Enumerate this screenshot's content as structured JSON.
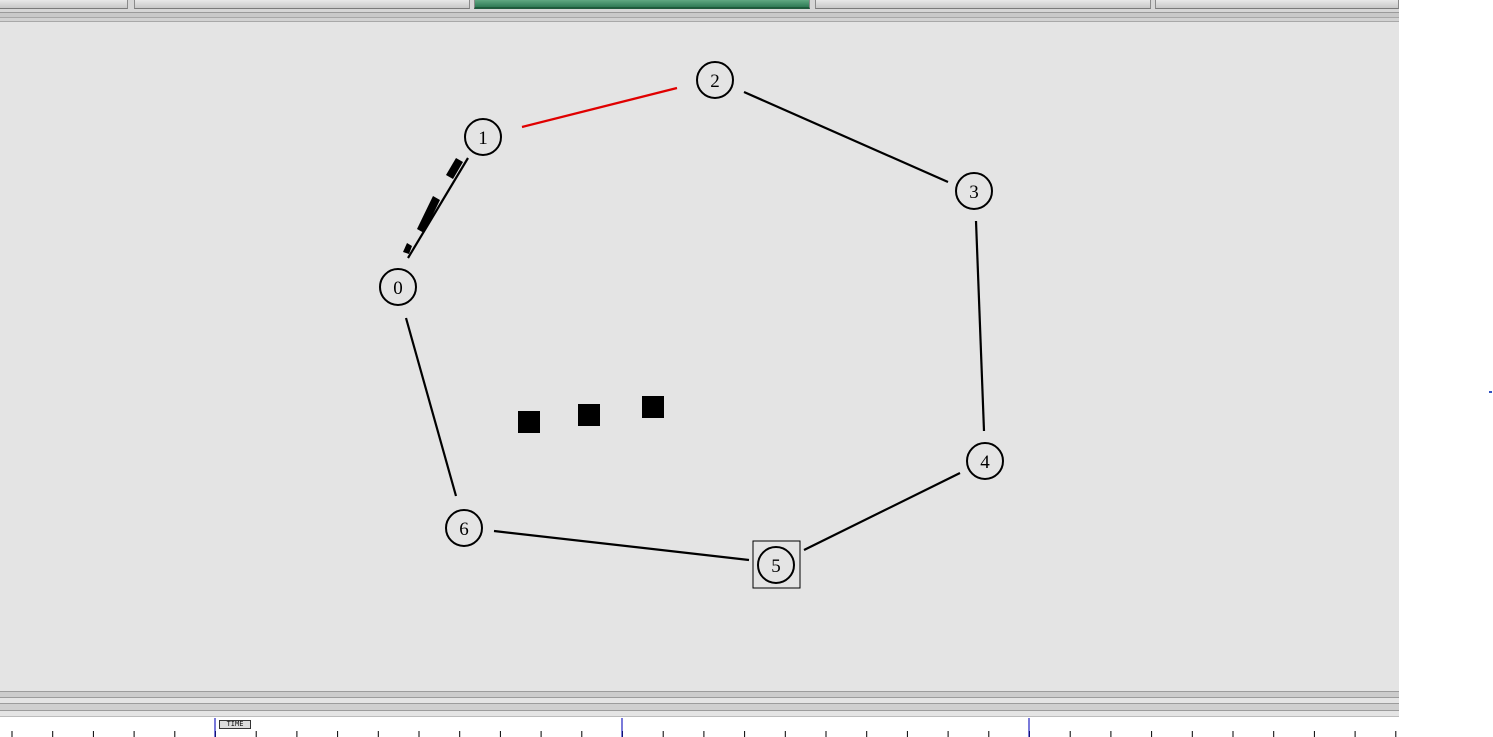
{
  "tabs": [
    {
      "id": "tab-1",
      "active": false
    },
    {
      "id": "tab-2",
      "active": false
    },
    {
      "id": "tab-3",
      "active": true
    },
    {
      "id": "tab-4",
      "active": false
    },
    {
      "id": "tab-5",
      "active": false
    }
  ],
  "graph": {
    "nodes": [
      {
        "id": "0",
        "label": "0"
      },
      {
        "id": "1",
        "label": "1"
      },
      {
        "id": "2",
        "label": "2"
      },
      {
        "id": "3",
        "label": "3"
      },
      {
        "id": "4",
        "label": "4"
      },
      {
        "id": "5",
        "label": "5",
        "selected": true
      },
      {
        "id": "6",
        "label": "6"
      }
    ],
    "edges": [
      {
        "from": "0",
        "to": "1",
        "color": "#000000",
        "dashed": false
      },
      {
        "from": "1",
        "to": "2",
        "color": "#e00000",
        "dashed": false
      },
      {
        "from": "2",
        "to": "3",
        "color": "#000000",
        "dashed": false
      },
      {
        "from": "3",
        "to": "4",
        "color": "#000000",
        "dashed": false
      },
      {
        "from": "4",
        "to": "5",
        "color": "#000000",
        "dashed": false
      },
      {
        "from": "5",
        "to": "6",
        "color": "#000000",
        "dashed": false
      },
      {
        "from": "6",
        "to": "0",
        "color": "#000000",
        "dashed": false
      }
    ],
    "packets_in_transit": 3
  },
  "timeline": {
    "marker_label": "TIME",
    "accent": "#2020c0"
  },
  "colors": {
    "canvas_bg": "#e4e4e4",
    "active_tab": "#2e7a55",
    "link_highlight": "#e00000"
  }
}
